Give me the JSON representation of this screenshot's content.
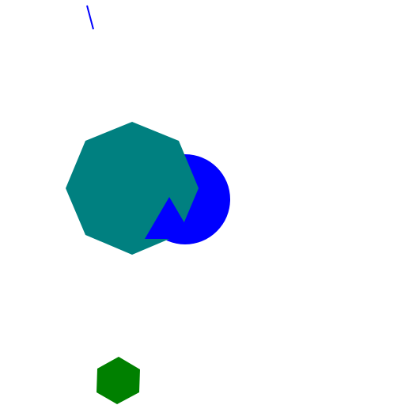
{
  "canvas": {
    "background": "#ffffff"
  },
  "shapes": [
    {
      "kind": "line-segment",
      "color": "#0000ff"
    },
    {
      "kind": "circle",
      "color": "#0000ff"
    },
    {
      "kind": "octagon",
      "color": "#008080"
    },
    {
      "kind": "triangle",
      "color": "#0000ff"
    },
    {
      "kind": "hexagon",
      "color": "#008000"
    }
  ]
}
